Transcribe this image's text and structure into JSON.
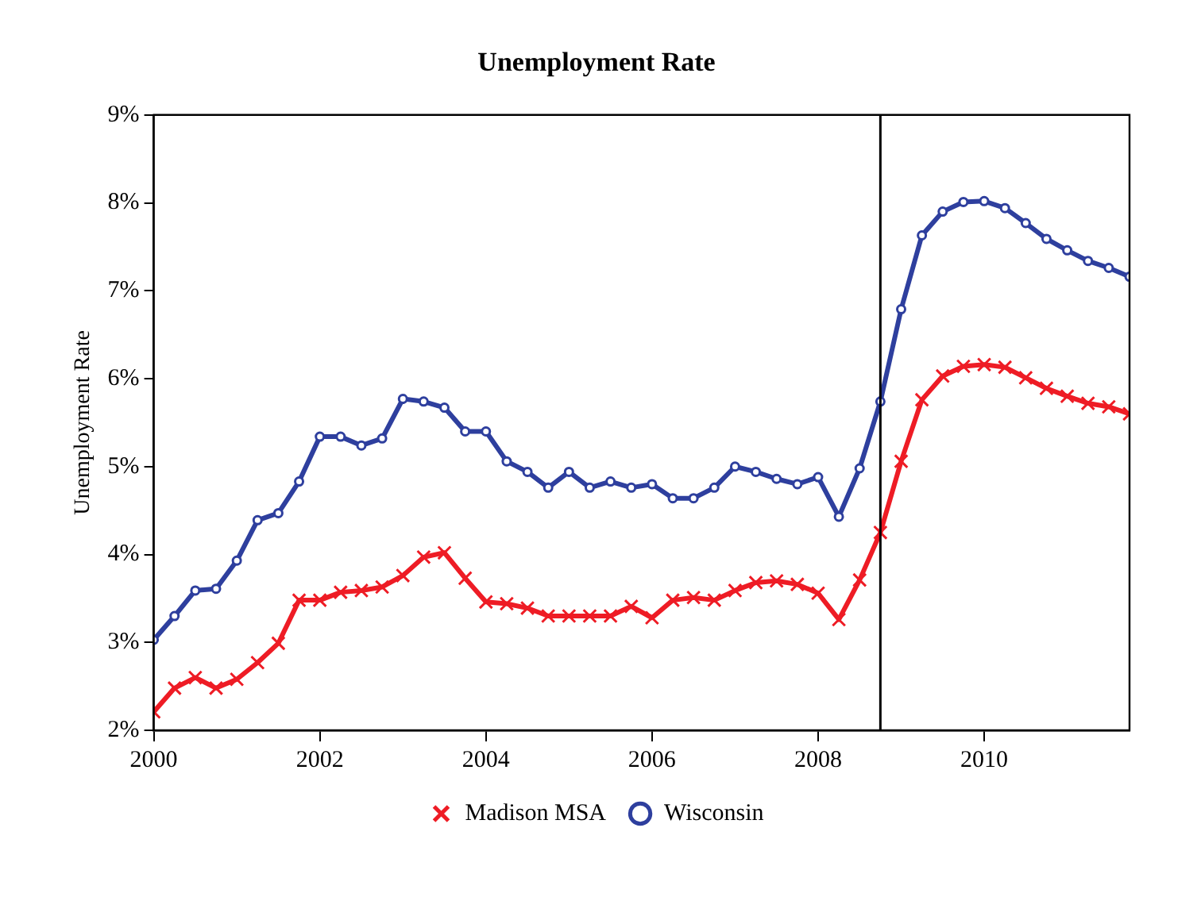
{
  "chart_data": {
    "type": "line",
    "title": "Unemployment Rate",
    "ylabel": "Unemployment Rate",
    "x": [
      2000,
      2000.25,
      2000.5,
      2000.75,
      2001,
      2001.25,
      2001.5,
      2001.75,
      2002,
      2002.25,
      2002.5,
      2002.75,
      2003,
      2003.25,
      2003.5,
      2003.75,
      2004,
      2004.25,
      2004.5,
      2004.75,
      2005,
      2005.25,
      2005.5,
      2005.75,
      2006,
      2006.25,
      2006.5,
      2006.75,
      2007,
      2007.25,
      2007.5,
      2007.75,
      2008,
      2008.25,
      2008.5,
      2008.75,
      2009,
      2009.25,
      2009.5,
      2009.75,
      2010,
      2010.25,
      2010.5,
      2010.75,
      2011,
      2011.25,
      2011.5,
      2011.75
    ],
    "series": [
      {
        "name": "Madison MSA",
        "color": "#ee1c25",
        "marker": "cross",
        "values": [
          2.21,
          2.48,
          2.6,
          2.48,
          2.58,
          2.77,
          2.99,
          3.48,
          3.48,
          3.57,
          3.59,
          3.63,
          3.76,
          3.97,
          4.02,
          3.73,
          3.46,
          3.44,
          3.39,
          3.3,
          3.3,
          3.3,
          3.3,
          3.41,
          3.28,
          3.48,
          3.51,
          3.48,
          3.59,
          3.68,
          3.7,
          3.66,
          3.56,
          3.26,
          3.71,
          4.25,
          5.06,
          5.76,
          6.03,
          6.14,
          6.16,
          6.13,
          6.01,
          5.89,
          5.8,
          5.72,
          5.68,
          5.6
        ]
      },
      {
        "name": "Wisconsin",
        "color": "#2e3f9e",
        "marker": "circle",
        "values": [
          3.03,
          3.3,
          3.59,
          3.61,
          3.93,
          4.39,
          4.47,
          4.83,
          5.34,
          5.34,
          5.24,
          5.32,
          5.77,
          5.74,
          5.67,
          5.4,
          5.4,
          5.06,
          4.94,
          4.76,
          4.94,
          4.76,
          4.83,
          4.76,
          4.8,
          4.64,
          4.64,
          4.76,
          5.0,
          4.94,
          4.86,
          4.8,
          4.88,
          4.43,
          4.98,
          5.74,
          6.79,
          7.63,
          7.9,
          8.01,
          8.02,
          7.94,
          7.77,
          7.59,
          7.46,
          7.34,
          7.26,
          7.16
        ]
      }
    ],
    "xlim": [
      2000,
      2011.75
    ],
    "xticks": [
      2000,
      2002,
      2004,
      2006,
      2008,
      2010
    ],
    "ylim": [
      2,
      9
    ],
    "yticks": [
      {
        "value": 2,
        "label": "2%"
      },
      {
        "value": 3,
        "label": "3%"
      },
      {
        "value": 4,
        "label": "4%"
      },
      {
        "value": 5,
        "label": "5%"
      },
      {
        "value": 6,
        "label": "6%"
      },
      {
        "value": 7,
        "label": "7%"
      },
      {
        "value": 8,
        "label": "8%"
      },
      {
        "value": 9,
        "label": "9%"
      }
    ],
    "ref_lines": [
      {
        "axis": "x",
        "value": 2008.75,
        "color": "#000000"
      }
    ],
    "grid": false,
    "legend": "bottom"
  }
}
